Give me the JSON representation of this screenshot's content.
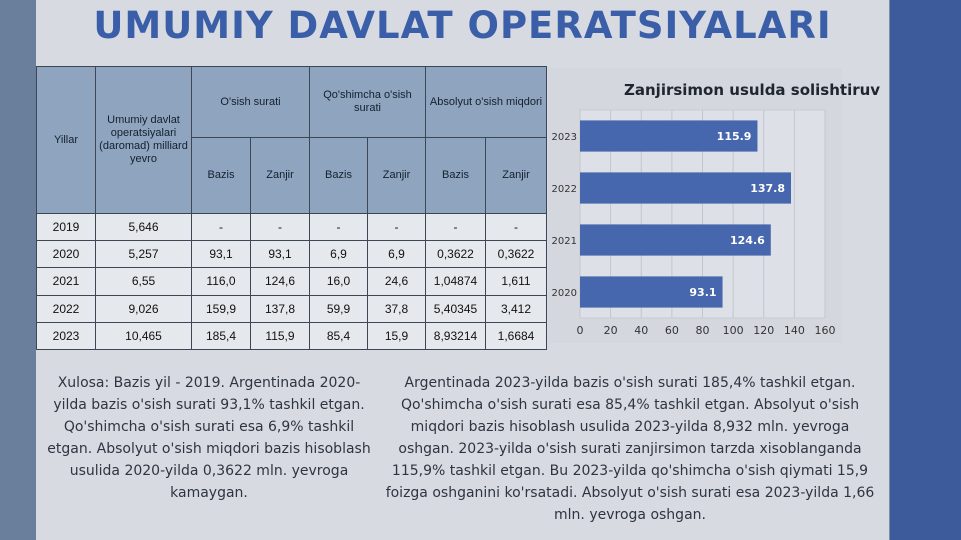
{
  "title": "UMUMIY DAVLAT OPERATSIYALARI",
  "table": {
    "col_year": "Yillar",
    "col_ops": "Umumiy davlat operatsiyalari (daromad) milliard yevro",
    "col_growth": "O'sish surati",
    "col_increase": "Qo'shimcha o'sish surati",
    "col_absolute": "Absolyut o'sish miqdori",
    "sub_bazis": "Bazis",
    "sub_zanjir": "Zanjir",
    "rows": [
      [
        "2019",
        "5,646",
        "-",
        "-",
        "-",
        "-",
        "-",
        "-"
      ],
      [
        "2020",
        "5,257",
        "93,1",
        "93,1",
        "6,9",
        "6,9",
        "0,3622",
        "0,3622"
      ],
      [
        "2021",
        "6,55",
        "116,0",
        "124,6",
        "16,0",
        "24,6",
        "1,04874",
        "1,611"
      ],
      [
        "2022",
        "9,026",
        "159,9",
        "137,8",
        "59,9",
        "37,8",
        "5,40345",
        "3,412"
      ],
      [
        "2023",
        "10,465",
        "185,4",
        "115,9",
        "85,4",
        "15,9",
        "8,93214",
        "1,6684"
      ]
    ]
  },
  "chart_data": {
    "type": "bar",
    "orientation": "horizontal",
    "title": "Zanjirsimon usulda solishtiruv",
    "categories": [
      "2023",
      "2022",
      "2021",
      "2020"
    ],
    "values": [
      115.9,
      137.8,
      124.6,
      93.1
    ],
    "value_labels": [
      "115.9",
      "137.8",
      "124.6",
      "93.1"
    ],
    "xlim": [
      0,
      160
    ],
    "xticks": [
      "0",
      "20",
      "40",
      "60",
      "80",
      "100",
      "120",
      "140",
      "160"
    ],
    "grid": true,
    "bar_color": "#4666ad"
  },
  "notes": {
    "left": "Xulosa: Bazis yil - 2019. Argentinada 2020-yilda bazis o'sish surati 93,1% tashkil etgan. Qo'shimcha o'sish surati esa 6,9% tashkil etgan. Absolyut o'sish miqdori bazis hisoblash usulida 2020-yilda 0,3622 mln. yevroga kamaygan.",
    "right": "Argentinada 2023-yilda bazis o'sish surati 185,4% tashkil etgan. Qo'shimcha o'sish surati esa 85,4% tashkil etgan. Absolyut o'sish miqdori bazis hisoblash usulida 2023-yilda 8,932 mln. yevroga oshgan.  2023-yilda o'sish surati zanjirsimon tarzda xisoblanganda 115,9% tashkil etgan. Bu 2023-yilda qo'shimcha o'sish qiymati 15,9 foizga oshganini ko'rsatadi. Absolyut o'sish surati esa 2023-yilda 1,66 mln. yevroga oshgan."
  }
}
